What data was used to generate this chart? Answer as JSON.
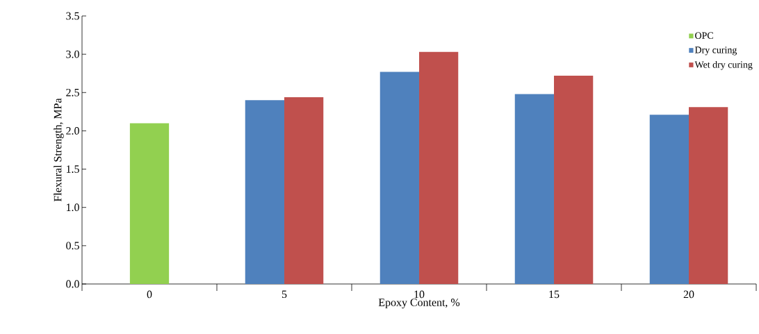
{
  "chart_data": {
    "type": "bar",
    "xlabel": "Epoxy Content, %",
    "ylabel": "Flexural Strength, MPa",
    "categories": [
      "0",
      "5",
      "10",
      "15",
      "20"
    ],
    "series": [
      {
        "name": "OPC",
        "color": "#92d050",
        "values": [
          2.1,
          null,
          null,
          null,
          null
        ]
      },
      {
        "name": "Dry curing",
        "color": "#4f81bd",
        "values": [
          null,
          2.4,
          2.77,
          2.48,
          2.21
        ]
      },
      {
        "name": "Wet dry curing",
        "color": "#c0504d",
        "values": [
          null,
          2.44,
          3.03,
          2.72,
          2.31
        ]
      }
    ],
    "ylim": [
      0,
      3.5
    ],
    "yticks": [
      {
        "value": 0,
        "label": "0.0"
      },
      {
        "value": 0.5,
        "label": "0.5"
      },
      {
        "value": 1,
        "label": "1.0"
      },
      {
        "value": 1.5,
        "label": "1.5"
      },
      {
        "value": 2,
        "label": "2.0"
      },
      {
        "value": 2.5,
        "label": "2.5"
      },
      {
        "value": 3,
        "label": "3.0"
      },
      {
        "value": 3.5,
        "label": "3.5"
      }
    ],
    "legend": "top right",
    "grid": false
  }
}
